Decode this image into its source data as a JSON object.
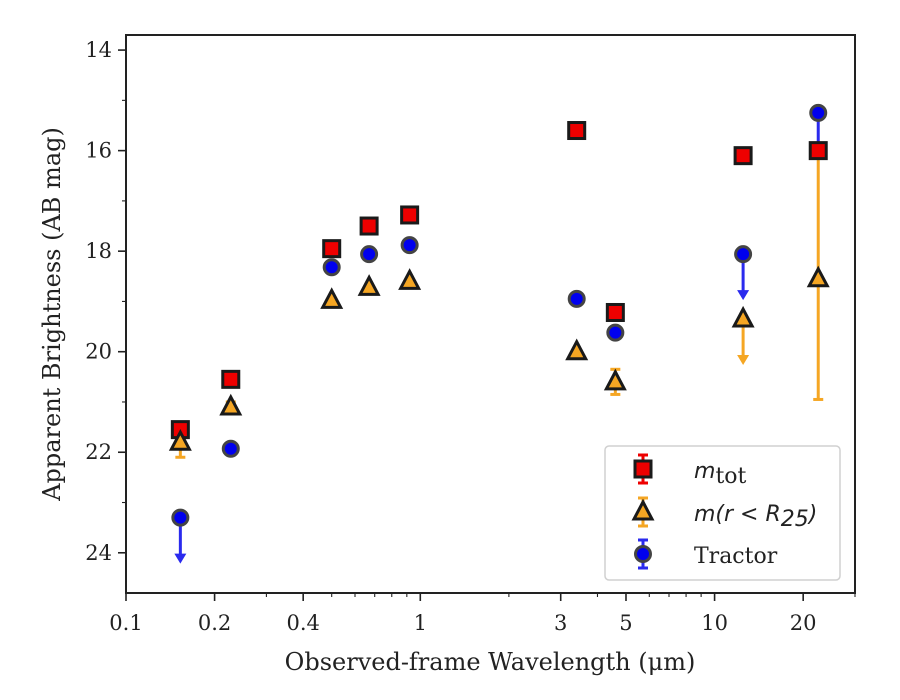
{
  "chart_data": {
    "type": "scatter",
    "xlabel": "Observed-frame Wavelength (μm)",
    "ylabel": "Apparent Brightness (AB mag)",
    "xscale": "log",
    "xlim": [
      0.1,
      30
    ],
    "ylim": [
      24.8,
      13.7
    ],
    "y_inverted": true,
    "x_ticks": [
      0.1,
      0.2,
      0.4,
      1,
      3,
      5,
      10,
      20
    ],
    "x_tick_labels": [
      "0.1",
      "0.2",
      "0.4",
      "1",
      "3",
      "5",
      "10",
      "20"
    ],
    "y_ticks": [
      14,
      16,
      18,
      20,
      22,
      24
    ],
    "y_tick_labels": [
      "14",
      "16",
      "18",
      "20",
      "22",
      "24"
    ],
    "grid": false,
    "legend_position": "bottom-right",
    "series": [
      {
        "name": "m_tot",
        "label_main": "m",
        "label_sub": "tot",
        "marker": "square",
        "color": "#ee0000",
        "points": [
          {
            "x": 0.153,
            "y": 21.55,
            "err": 0.1
          },
          {
            "x": 0.227,
            "y": 20.55
          },
          {
            "x": 0.5,
            "y": 17.95
          },
          {
            "x": 0.67,
            "y": 17.5
          },
          {
            "x": 0.92,
            "y": 17.28
          },
          {
            "x": 3.4,
            "y": 15.6
          },
          {
            "x": 4.6,
            "y": 19.22
          },
          {
            "x": 12.5,
            "y": 16.1
          },
          {
            "x": 22.5,
            "y": 16.0,
            "err": 0.05
          }
        ]
      },
      {
        "name": "m(r < R25)",
        "label_main": "m(r < R",
        "label_sub": "25",
        "label_tail": ")",
        "marker": "triangle",
        "color": "#f5a623",
        "points": [
          {
            "x": 0.153,
            "y": 21.8,
            "err": 0.3
          },
          {
            "x": 0.227,
            "y": 21.1,
            "err": 0.1
          },
          {
            "x": 0.5,
            "y": 18.98
          },
          {
            "x": 0.67,
            "y": 18.72
          },
          {
            "x": 0.92,
            "y": 18.6
          },
          {
            "x": 3.4,
            "y": 20.0
          },
          {
            "x": 4.6,
            "y": 20.6,
            "err": 0.25
          },
          {
            "x": 12.5,
            "y": 19.35,
            "upper_limit": true
          },
          {
            "x": 22.5,
            "y": 18.55,
            "err_low": 2.4,
            "err_high": 2.4
          }
        ]
      },
      {
        "name": "Tractor",
        "marker": "circle",
        "color": "#0000ee",
        "points": [
          {
            "x": 0.153,
            "y": 23.3,
            "upper_limit": true
          },
          {
            "x": 0.227,
            "y": 21.93
          },
          {
            "x": 0.5,
            "y": 18.32
          },
          {
            "x": 0.67,
            "y": 18.06
          },
          {
            "x": 0.92,
            "y": 17.88
          },
          {
            "x": 3.4,
            "y": 18.95
          },
          {
            "x": 4.6,
            "y": 19.62
          },
          {
            "x": 12.5,
            "y": 18.06,
            "upper_limit": true
          },
          {
            "x": 22.5,
            "y": 15.25,
            "upper_limit": true
          }
        ]
      }
    ]
  }
}
